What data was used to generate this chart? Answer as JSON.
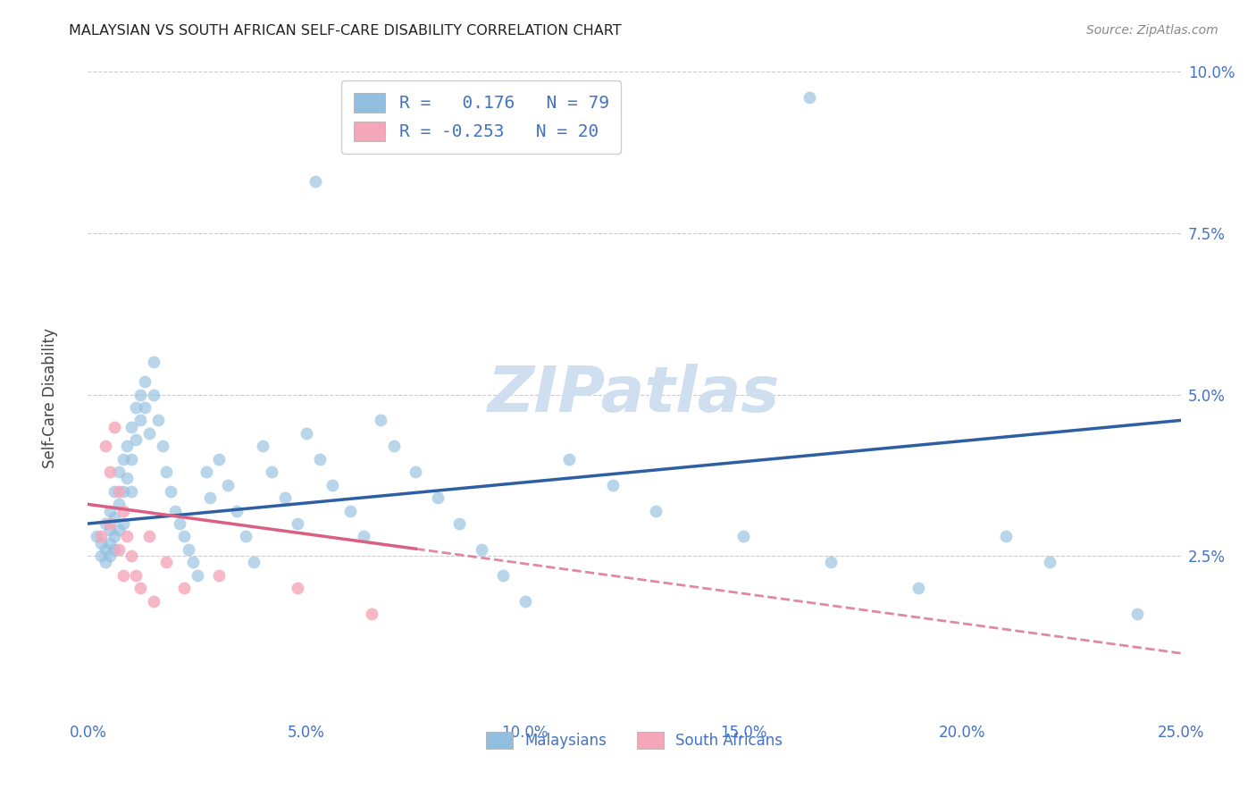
{
  "title": "MALAYSIAN VS SOUTH AFRICAN SELF-CARE DISABILITY CORRELATION CHART",
  "source": "Source: ZipAtlas.com",
  "ylabel": "Self-Care Disability",
  "xlim": [
    0.0,
    0.25
  ],
  "ylim": [
    0.0,
    0.1
  ],
  "xlabel_vals": [
    0.0,
    0.05,
    0.1,
    0.15,
    0.2,
    0.25
  ],
  "xlabel_ticks": [
    "0.0%",
    "5.0%",
    "10.0%",
    "15.0%",
    "20.0%",
    "25.0%"
  ],
  "ylabel_vals": [
    0.0,
    0.025,
    0.05,
    0.075,
    0.1
  ],
  "ylabel_ticks": [
    "",
    "2.5%",
    "5.0%",
    "7.5%",
    "10.0%"
  ],
  "r_malaysian": 0.176,
  "n_malaysian": 79,
  "r_south_african": -0.253,
  "n_south_african": 20,
  "color_malaysian": "#92BFE0",
  "color_south_african": "#F4A7B9",
  "line_color_malaysian": "#2E5FA3",
  "line_color_south_african": "#D96080",
  "watermark_color": "#D0DFF0",
  "background_color": "#ffffff",
  "grid_color": "#cccccc",
  "tick_color": "#4472C4",
  "title_color": "#222222",
  "source_color": "#888888",
  "legend_edge_color": "#cccccc",
  "malaysian_x": [
    0.002,
    0.003,
    0.003,
    0.004,
    0.004,
    0.004,
    0.005,
    0.005,
    0.005,
    0.005,
    0.006,
    0.006,
    0.006,
    0.006,
    0.007,
    0.007,
    0.007,
    0.008,
    0.008,
    0.008,
    0.009,
    0.009,
    0.01,
    0.01,
    0.01,
    0.011,
    0.011,
    0.012,
    0.012,
    0.013,
    0.013,
    0.014,
    0.015,
    0.015,
    0.016,
    0.017,
    0.018,
    0.019,
    0.02,
    0.021,
    0.022,
    0.023,
    0.024,
    0.025,
    0.027,
    0.028,
    0.03,
    0.032,
    0.034,
    0.036,
    0.038,
    0.04,
    0.042,
    0.045,
    0.048,
    0.05,
    0.053,
    0.056,
    0.06,
    0.063,
    0.067,
    0.07,
    0.075,
    0.08,
    0.085,
    0.09,
    0.095,
    0.1,
    0.11,
    0.12,
    0.13,
    0.15,
    0.17,
    0.19,
    0.21,
    0.22,
    0.052,
    0.165,
    0.24
  ],
  "malaysian_y": [
    0.028,
    0.027,
    0.025,
    0.03,
    0.026,
    0.024,
    0.032,
    0.029,
    0.027,
    0.025,
    0.035,
    0.031,
    0.028,
    0.026,
    0.038,
    0.033,
    0.029,
    0.04,
    0.035,
    0.03,
    0.042,
    0.037,
    0.045,
    0.04,
    0.035,
    0.048,
    0.043,
    0.05,
    0.046,
    0.052,
    0.048,
    0.044,
    0.055,
    0.05,
    0.046,
    0.042,
    0.038,
    0.035,
    0.032,
    0.03,
    0.028,
    0.026,
    0.024,
    0.022,
    0.038,
    0.034,
    0.04,
    0.036,
    0.032,
    0.028,
    0.024,
    0.042,
    0.038,
    0.034,
    0.03,
    0.044,
    0.04,
    0.036,
    0.032,
    0.028,
    0.046,
    0.042,
    0.038,
    0.034,
    0.03,
    0.026,
    0.022,
    0.018,
    0.04,
    0.036,
    0.032,
    0.028,
    0.024,
    0.02,
    0.028,
    0.024,
    0.083,
    0.096,
    0.016
  ],
  "south_african_x": [
    0.003,
    0.004,
    0.005,
    0.005,
    0.006,
    0.007,
    0.007,
    0.008,
    0.008,
    0.009,
    0.01,
    0.011,
    0.012,
    0.014,
    0.015,
    0.018,
    0.022,
    0.03,
    0.048,
    0.065
  ],
  "south_african_y": [
    0.028,
    0.042,
    0.038,
    0.03,
    0.045,
    0.035,
    0.026,
    0.032,
    0.022,
    0.028,
    0.025,
    0.022,
    0.02,
    0.028,
    0.018,
    0.024,
    0.02,
    0.022,
    0.02,
    0.016
  ],
  "line_m_x0": 0.0,
  "line_m_y0": 0.03,
  "line_m_x1": 0.25,
  "line_m_y1": 0.046,
  "line_sa_x0": 0.0,
  "line_sa_y0": 0.033,
  "line_sa_x1": 0.25,
  "line_sa_y1": 0.01,
  "line_sa_solid_end": 0.075
}
